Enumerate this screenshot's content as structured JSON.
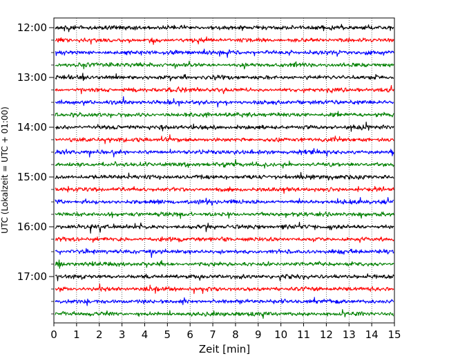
{
  "chart_data": {
    "type": "line",
    "title": "",
    "xlabel": "Zeit  [min]",
    "ylabel": "UTC (Lokalzeit = UTC + 01:00)",
    "xlim": [
      0,
      15
    ],
    "x_ticks": [
      "0",
      "1",
      "2",
      "3",
      "4",
      "5",
      "6",
      "7",
      "8",
      "9",
      "10",
      "11",
      "12",
      "13",
      "14",
      "15"
    ],
    "y_tick_labels": [
      "12:00",
      "13:00",
      "14:00",
      "15:00",
      "16:00",
      "17:00"
    ],
    "grid": "vertical dotted lines at each minute",
    "trace_interval_minutes": 15,
    "trace_start_times": [
      "12:00",
      "12:15",
      "12:30",
      "12:45",
      "13:00",
      "13:15",
      "13:30",
      "13:45",
      "14:00",
      "14:15",
      "14:30",
      "14:45",
      "15:00",
      "15:15",
      "15:30",
      "15:45",
      "16:00",
      "16:15",
      "16:30",
      "16:45",
      "17:00",
      "17:15",
      "17:30",
      "17:45"
    ],
    "trace_colors": [
      "#000000",
      "#ff0000",
      "#0000ff",
      "#008000"
    ]
  }
}
